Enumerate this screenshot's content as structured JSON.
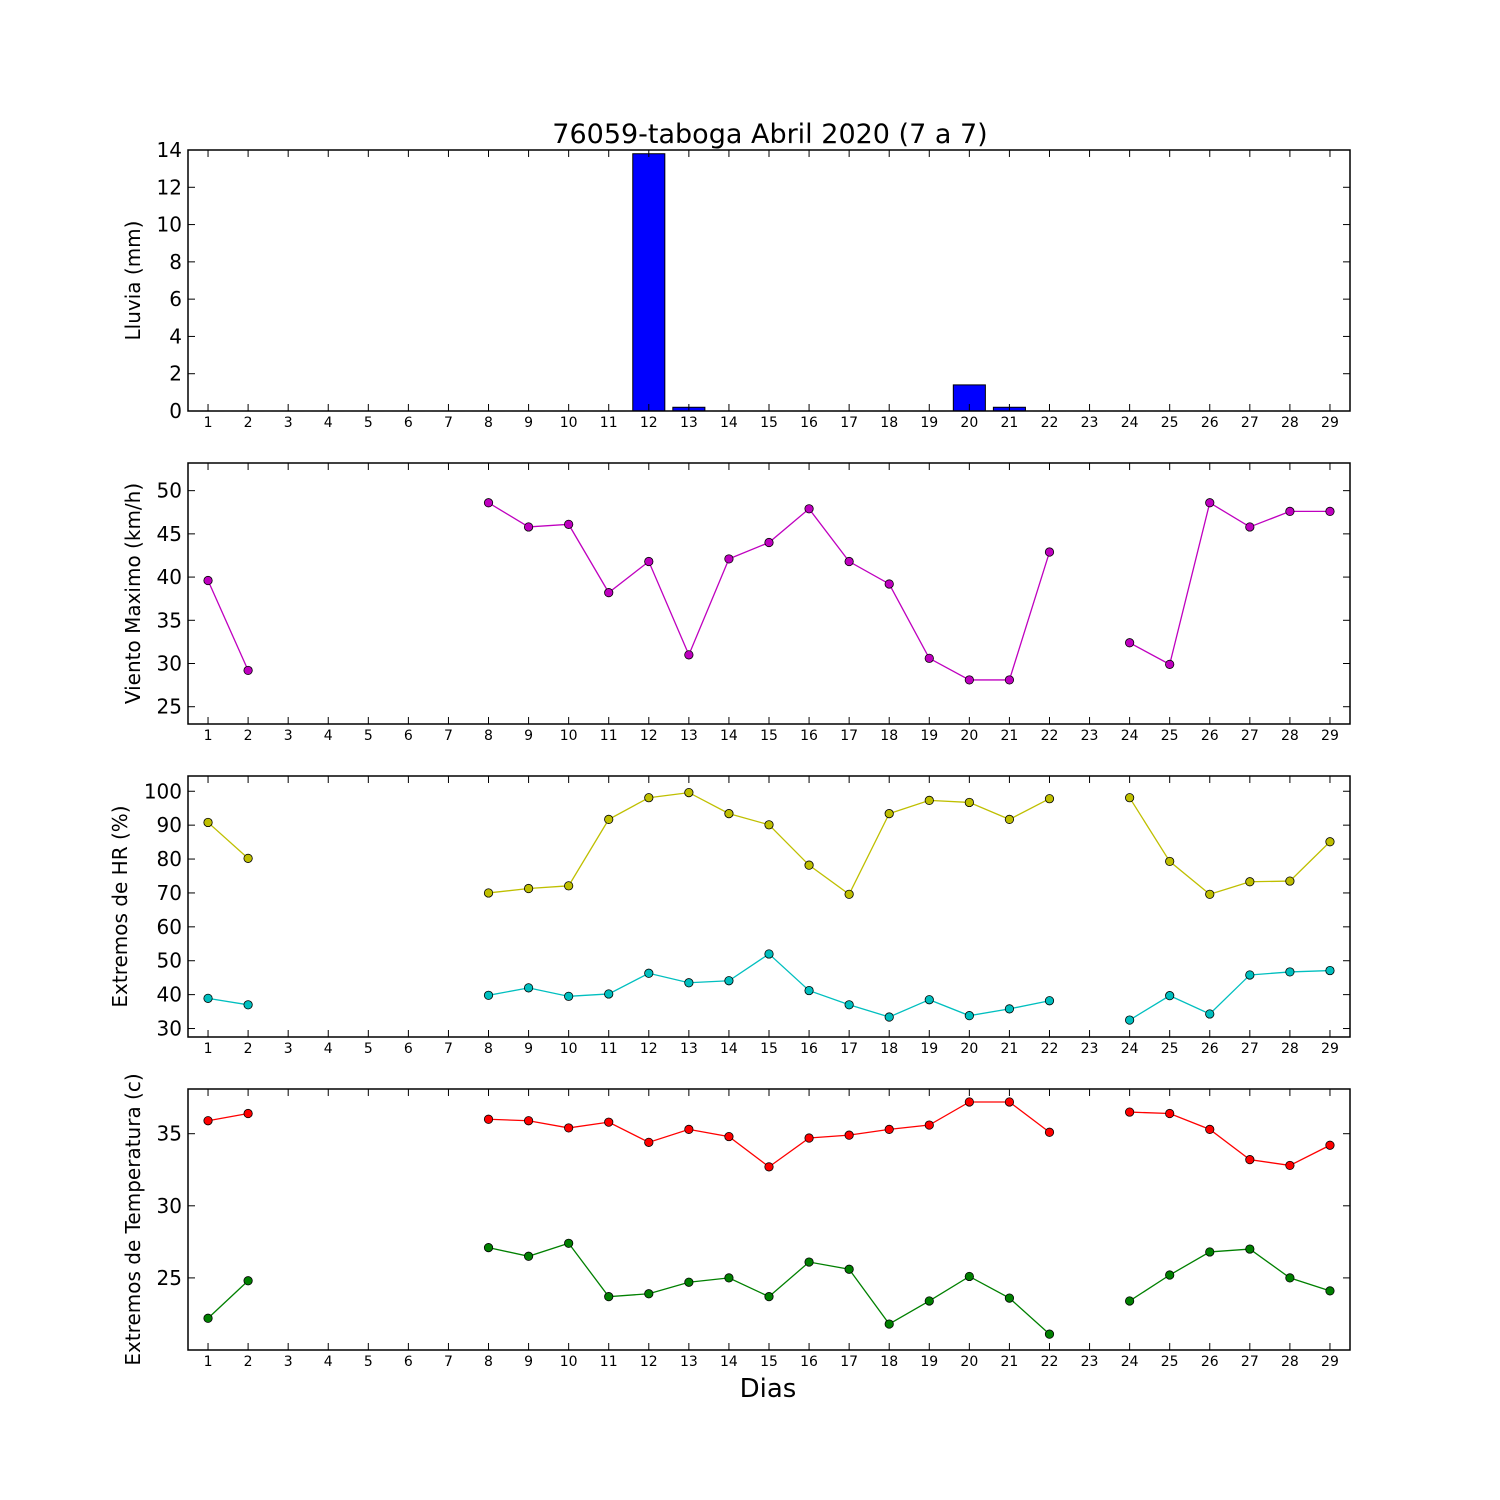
{
  "chart_data": {
    "type": "line",
    "title": "76059-taboga Abril 2020  (7 a 7)",
    "xlabel": "Dias",
    "x": [
      1,
      2,
      3,
      4,
      5,
      6,
      7,
      8,
      9,
      10,
      11,
      12,
      13,
      14,
      15,
      16,
      17,
      18,
      19,
      20,
      21,
      22,
      23,
      24,
      25,
      26,
      27,
      28,
      29
    ],
    "xlim": [
      0.5,
      29.5
    ],
    "panels": [
      {
        "id": "lluvia",
        "type": "bar",
        "ylabel": "Lluvia (mm)",
        "ylim": [
          0,
          14
        ],
        "yticks": [
          0,
          2,
          4,
          6,
          8,
          10,
          12,
          14
        ],
        "series": [
          {
            "color": "#0000ff",
            "values": [
              0,
              0,
              0,
              0,
              0,
              0,
              0,
              0,
              0,
              0,
              0,
              13.8,
              0.2,
              0,
              0,
              0,
              0,
              0,
              0,
              1.4,
              0.2,
              0,
              0,
              0,
              0,
              0,
              0,
              0,
              0
            ]
          }
        ]
      },
      {
        "id": "viento",
        "type": "line",
        "ylabel": "Viento Maximo (km/h)",
        "ylim": [
          23,
          53.2
        ],
        "yticks": [
          25,
          30,
          35,
          40,
          45,
          50
        ],
        "series": [
          {
            "color": "#bf00bf",
            "values": [
              39.6,
              29.2,
              null,
              null,
              null,
              null,
              null,
              48.6,
              45.8,
              46.1,
              38.2,
              41.8,
              31.0,
              42.1,
              44.0,
              47.9,
              41.8,
              39.2,
              30.6,
              28.1,
              28.1,
              42.9,
              null,
              32.4,
              29.9,
              48.6,
              45.8,
              47.6,
              47.6
            ]
          }
        ]
      },
      {
        "id": "hr",
        "type": "line",
        "ylabel": "Extremos de HR (%)",
        "ylim": [
          27.5,
          104.5
        ],
        "yticks": [
          30,
          40,
          50,
          60,
          70,
          80,
          90,
          100
        ],
        "series": [
          {
            "color": "#bfbf00",
            "values": [
              90.8,
              80.2,
              null,
              null,
              null,
              null,
              null,
              70.0,
              71.3,
              72.1,
              91.7,
              98.1,
              99.6,
              93.4,
              90.1,
              78.2,
              69.6,
              93.4,
              97.3,
              96.7,
              91.7,
              97.8,
              null,
              98.1,
              79.3,
              69.6,
              73.3,
              73.5,
              85.1
            ]
          },
          {
            "color": "#00bfbf",
            "values": [
              38.9,
              37.0,
              null,
              null,
              null,
              null,
              null,
              39.8,
              42.0,
              39.5,
              40.2,
              46.3,
              43.5,
              44.1,
              52.0,
              41.2,
              37.0,
              33.4,
              38.5,
              33.8,
              35.8,
              38.2,
              null,
              32.5,
              39.7,
              34.3,
              45.8,
              46.7,
              47.1
            ]
          }
        ]
      },
      {
        "id": "temperatura",
        "type": "line",
        "ylabel": "Extremos de Temperatura (c)",
        "ylim": [
          20.0,
          38.1
        ],
        "yticks": [
          25,
          30,
          35
        ],
        "series": [
          {
            "color": "#ff0000",
            "values": [
              35.9,
              36.4,
              null,
              null,
              null,
              null,
              null,
              36.0,
              35.9,
              35.4,
              35.8,
              34.4,
              35.3,
              34.8,
              32.7,
              34.7,
              34.9,
              35.3,
              35.6,
              37.2,
              37.2,
              35.1,
              null,
              36.5,
              36.4,
              35.3,
              33.2,
              32.8,
              34.2
            ]
          },
          {
            "color": "#008000",
            "values": [
              22.2,
              24.8,
              null,
              null,
              null,
              null,
              null,
              27.1,
              26.5,
              27.4,
              23.7,
              23.9,
              24.7,
              25.0,
              23.7,
              26.1,
              25.6,
              21.8,
              23.4,
              25.1,
              23.6,
              21.1,
              null,
              23.4,
              25.2,
              26.8,
              27.0,
              25.0,
              24.1
            ]
          }
        ]
      }
    ]
  }
}
